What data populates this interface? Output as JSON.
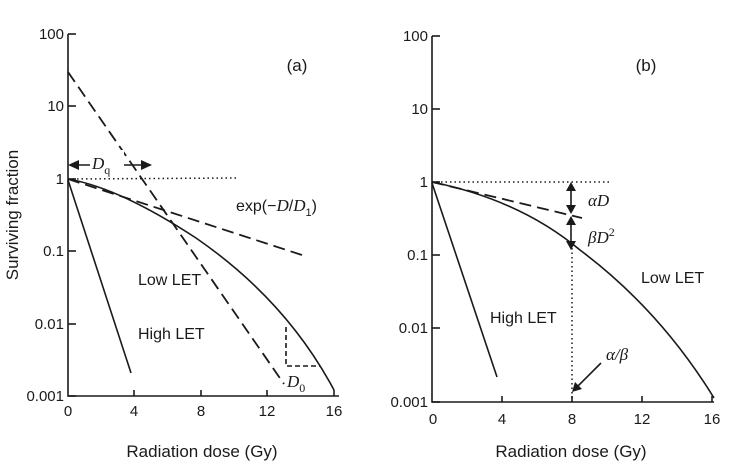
{
  "chart_data": [
    {
      "panel_label": "(a)",
      "type": "line",
      "ylabel": "Surviving fraction",
      "xlabel": "Radiation dose (Gy)",
      "yscale": "log",
      "xlim": [
        0,
        16
      ],
      "ylim": [
        0.001,
        100
      ],
      "x_ticks": [
        "0",
        "4",
        "8",
        "12",
        "16"
      ],
      "y_ticks": [
        "0.001",
        "0.01",
        "0.1",
        "1",
        "10",
        "100"
      ],
      "series": [
        {
          "name": "Low LET",
          "style": "solid",
          "x": [
            0,
            1,
            2,
            3,
            4,
            5,
            6,
            7,
            8,
            9,
            10,
            11,
            12,
            13,
            14,
            15,
            16
          ],
          "y": [
            1,
            0.88,
            0.74,
            0.6,
            0.48,
            0.37,
            0.28,
            0.2,
            0.13,
            0.085,
            0.053,
            0.032,
            0.0185,
            0.0108,
            0.0062,
            0.0035,
            0.002
          ]
        },
        {
          "name": "High LET",
          "style": "solid",
          "x": [
            0,
            3.7
          ],
          "y": [
            1,
            0.002
          ]
        },
        {
          "style": "dashed",
          "x": [
            0,
            13
          ],
          "y": [
            30,
            0.0037
          ]
        },
        {
          "style": "dashed",
          "x": [
            0,
            14
          ],
          "y": [
            1,
            0.075
          ]
        },
        {
          "style": "dotted",
          "x": [
            0,
            10
          ],
          "y": [
            1,
            1
          ]
        }
      ],
      "annotations": [
        "Dq",
        "exp(−D/D1)",
        "Low LET",
        "High LET",
        "D0"
      ],
      "text": {
        "dq_main": "D",
        "dq_sub": "q",
        "exp_pre": "exp(−",
        "exp_d": "D",
        "exp_slash": "/",
        "exp_d1": "D",
        "exp_d1_sub": "1",
        "exp_post": ")",
        "low_let": "Low LET",
        "high_let": "High LET",
        "d0_main": "D",
        "d0_sub": "0"
      }
    },
    {
      "panel_label": "(b)",
      "type": "line",
      "xlabel": "Radiation dose (Gy)",
      "yscale": "log",
      "xlim": [
        0,
        16
      ],
      "ylim": [
        0.001,
        100
      ],
      "x_ticks": [
        "0",
        "4",
        "8",
        "12",
        "16"
      ],
      "y_ticks": [
        "0.001",
        "0.01",
        "0.1",
        "1",
        "10",
        "100"
      ],
      "series": [
        {
          "name": "Low LET",
          "style": "solid",
          "x": [
            0,
            2,
            4,
            6,
            8,
            10,
            12,
            14,
            16
          ],
          "y": [
            1,
            0.72,
            0.49,
            0.3,
            0.13,
            0.054,
            0.018,
            0.0052,
            0.0013
          ]
        },
        {
          "name": "High LET",
          "style": "solid",
          "x": [
            0,
            3.7
          ],
          "y": [
            1,
            0.002
          ]
        },
        {
          "style": "dashed",
          "x": [
            0,
            8.5
          ],
          "y": [
            1,
            0.32
          ]
        },
        {
          "style": "dotted",
          "x": [
            0,
            10
          ],
          "y": [
            1,
            1
          ]
        }
      ],
      "annotations": [
        "αD",
        "βD2",
        "Low LET",
        "High LET",
        "α/β"
      ],
      "text": {
        "alpha_d": "αD",
        "beta_d_main": "βD",
        "beta_d_sup": "2",
        "alpha_beta": "α/β",
        "low_let": "Low LET",
        "high_let": "High LET"
      }
    }
  ]
}
